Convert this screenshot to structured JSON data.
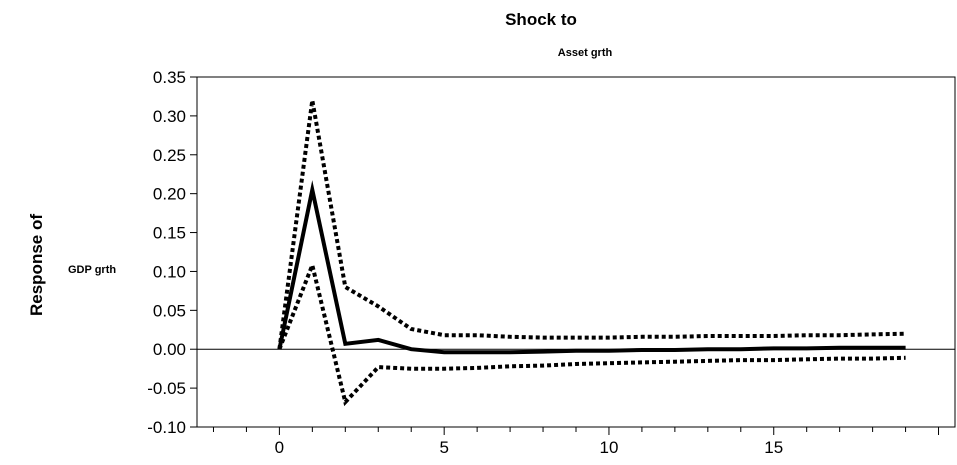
{
  "chart_data": {
    "type": "line",
    "title": "Shock to",
    "subtitle": "Asset grth",
    "ylabel": "Response of",
    "ylabel_sub": "GDP grth",
    "xlabel": "",
    "xlim": [
      -2.5,
      20.5
    ],
    "ylim": [
      -0.1,
      0.35
    ],
    "x_ticks": [
      0,
      5,
      10,
      15
    ],
    "y_ticks": [
      0.35,
      0.3,
      0.25,
      0.2,
      0.15,
      0.1,
      0.05,
      0.0,
      -0.05,
      -0.1
    ],
    "y_tick_labels": [
      "0.35",
      "0.30",
      "0.25",
      "0.20",
      "0.15",
      "0.10",
      "0.05",
      "0.00",
      "-0.05",
      "-0.10"
    ],
    "grid": false,
    "legend": "none",
    "x": [
      0,
      1,
      2,
      3,
      4,
      5,
      6,
      7,
      8,
      9,
      10,
      11,
      12,
      13,
      14,
      15,
      16,
      17,
      18,
      19
    ],
    "series": [
      {
        "style": "solid",
        "values": [
          0.0,
          0.205,
          0.007,
          0.012,
          0.0,
          -0.004,
          -0.004,
          -0.004,
          -0.003,
          -0.002,
          -0.002,
          -0.001,
          -0.001,
          0.0,
          0.0,
          0.001,
          0.001,
          0.002,
          0.002,
          0.002
        ]
      },
      {
        "style": "dotted",
        "values": [
          0.0,
          0.32,
          0.08,
          0.055,
          0.026,
          0.018,
          0.018,
          0.016,
          0.015,
          0.015,
          0.015,
          0.016,
          0.016,
          0.017,
          0.017,
          0.017,
          0.018,
          0.018,
          0.019,
          0.02
        ]
      },
      {
        "style": "dotted",
        "values": [
          0.0,
          0.108,
          -0.068,
          -0.023,
          -0.025,
          -0.025,
          -0.024,
          -0.022,
          -0.021,
          -0.019,
          -0.018,
          -0.017,
          -0.016,
          -0.015,
          -0.014,
          -0.014,
          -0.013,
          -0.012,
          -0.012,
          -0.011
        ]
      }
    ]
  }
}
